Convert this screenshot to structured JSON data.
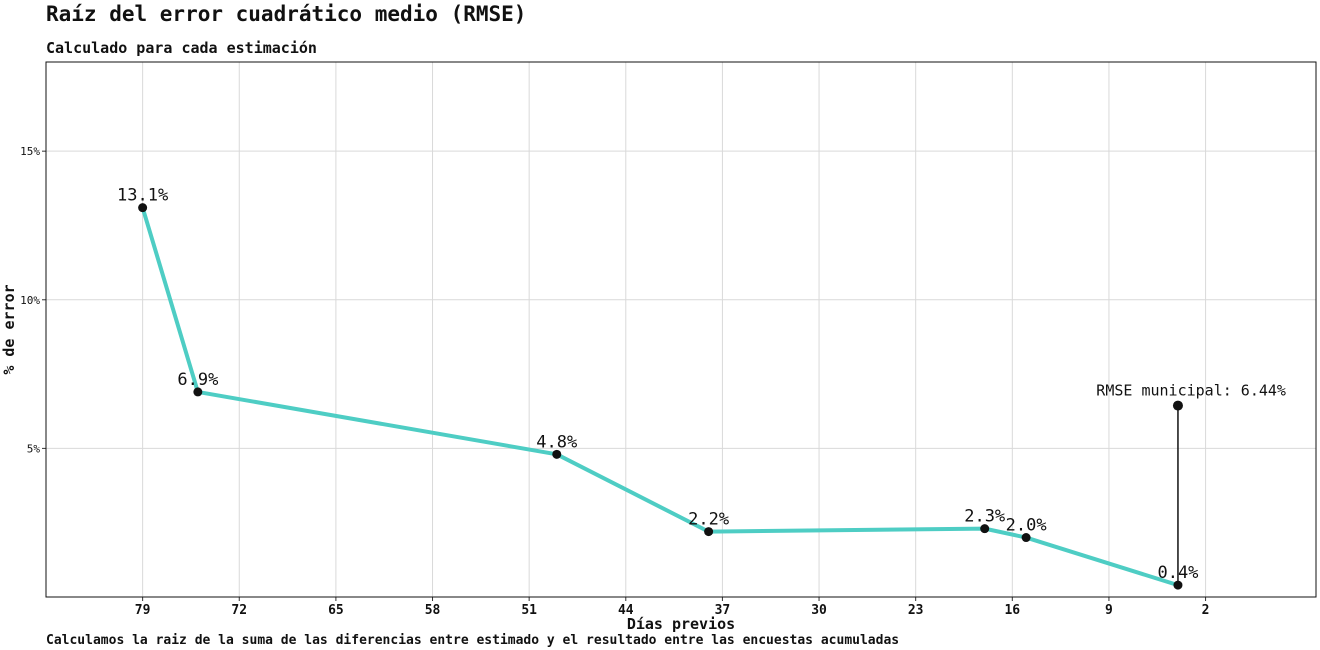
{
  "chart_data": {
    "type": "line",
    "title": "Raíz del error cuadrático medio (RMSE)",
    "subtitle": "Calculado para cada estimación",
    "caption": "Calculamos la raiz de la suma de las diferencias entre estimado y el resultado entre las encuestas acumuladas",
    "xlabel": "Días previos",
    "ylabel": "% de error",
    "x_reversed": true,
    "xlim": [
      86,
      -6
    ],
    "ylim": [
      0,
      18
    ],
    "x_ticks": [
      79,
      72,
      65,
      58,
      51,
      44,
      37,
      30,
      23,
      16,
      9,
      2
    ],
    "x_tick_labels": [
      "79",
      "72",
      "65",
      "58",
      "51",
      "44",
      "37",
      "30",
      "23",
      "16",
      "9",
      "2"
    ],
    "y_ticks": [
      5,
      10,
      15
    ],
    "y_tick_labels": [
      "5%",
      "10%",
      "15%"
    ],
    "grid": true,
    "series_color": "#4ecdc4",
    "point_color": "#111111",
    "series": [
      {
        "x": [
          79,
          75,
          49,
          38,
          18,
          15,
          4
        ],
        "values": [
          13.1,
          6.9,
          4.8,
          2.2,
          2.3,
          2.0,
          0.4
        ],
        "labels": [
          "13.1%",
          "6.9%",
          "4.8%",
          "2.2%",
          "2.3%",
          "2.0%",
          "0.4%"
        ]
      }
    ],
    "annotation": {
      "x": 4,
      "value": 6.44,
      "from_value": 0.4,
      "text": "RMSE municipal: 6.44%"
    }
  }
}
